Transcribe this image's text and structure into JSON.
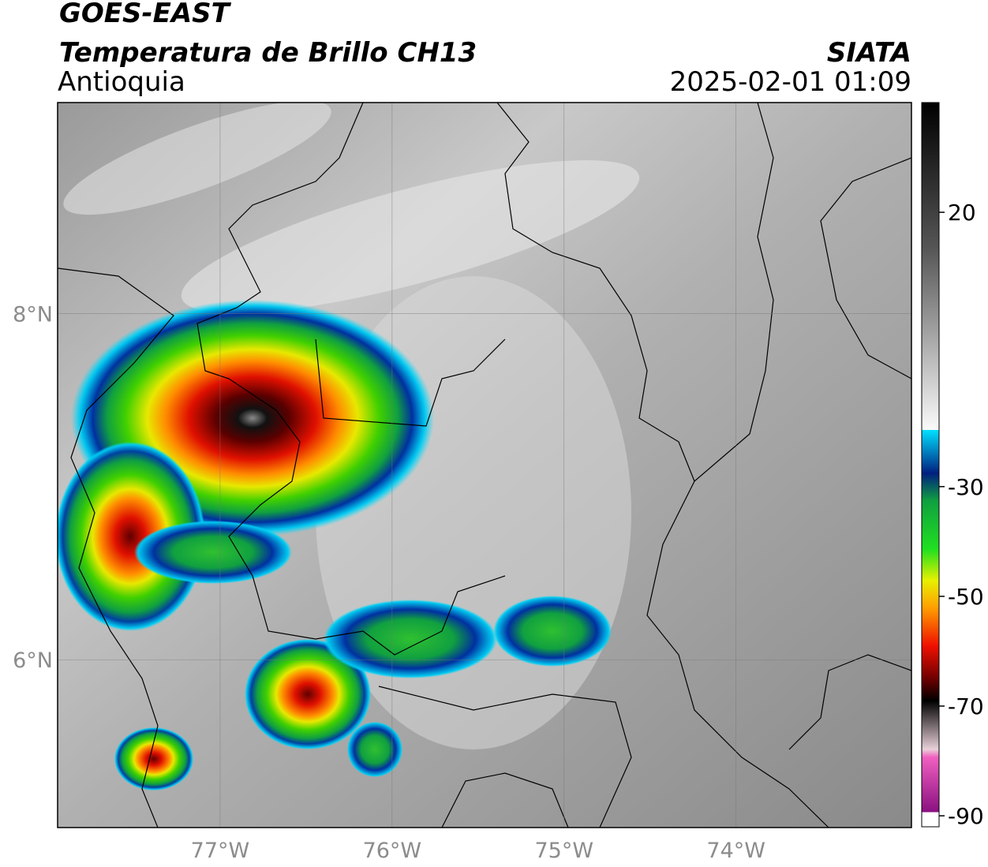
{
  "header": {
    "title": "GOES-EAST",
    "subtitle": "Temperatura de Brillo CH13",
    "region": "Antioquia",
    "agency": "SIATA",
    "datetime": "2025-02-01 01:09"
  },
  "map": {
    "xlim": [
      -77.945,
      -72.98
    ],
    "ylim": [
      5.03,
      9.22
    ],
    "xticks": [
      {
        "value": -77,
        "label": "77°W"
      },
      {
        "value": -76,
        "label": "76°W"
      },
      {
        "value": -75,
        "label": "75°W"
      },
      {
        "value": -74,
        "label": "74°W"
      }
    ],
    "yticks": [
      {
        "value": 8,
        "label": "8°N"
      },
      {
        "value": 6,
        "label": "6°N"
      }
    ]
  },
  "colorbar": {
    "clim": [
      -92,
      40
    ],
    "ticks": [
      20,
      -30,
      -50,
      -70,
      -90
    ]
  }
}
